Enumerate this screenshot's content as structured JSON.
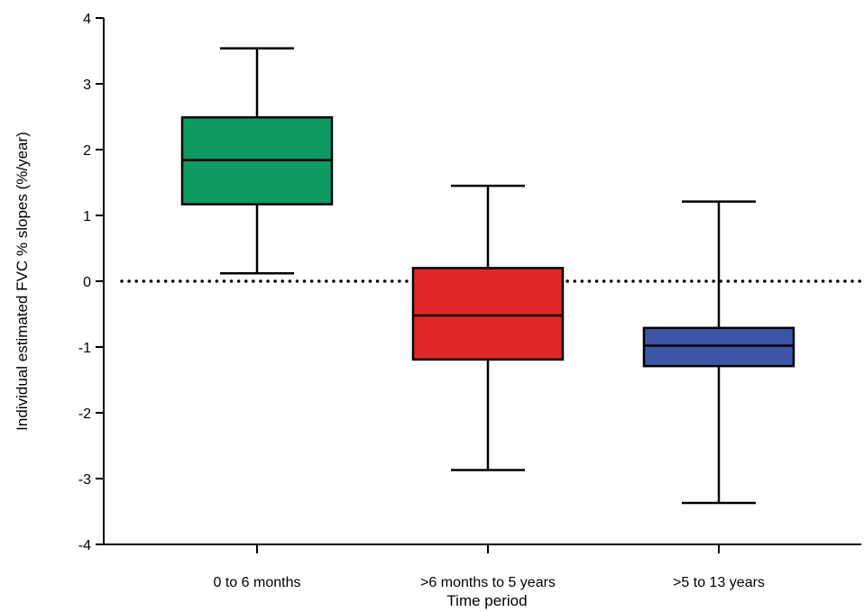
{
  "chart_data": {
    "type": "box",
    "title": "",
    "xlabel": "Time period",
    "ylabel": "Individual estimated FVC % slopes (%/year)",
    "ylim": [
      -4,
      4
    ],
    "yticks": [
      "4",
      "3",
      "2",
      "1",
      "0",
      "-1",
      "-2",
      "-3",
      "-4"
    ],
    "reference_line": {
      "y": 0,
      "style": "dotted"
    },
    "grid": false,
    "categories": [
      "0 to 6 months",
      ">6 months to 5 years",
      ">5 to 13 years"
    ],
    "boxes": [
      {
        "category": "0 to 6 months",
        "min": 0.12,
        "q1": 1.17,
        "median": 1.84,
        "q3": 2.49,
        "max": 3.54,
        "color": "#0f9a63"
      },
      {
        "category": ">6 months to 5 years",
        "min": -2.87,
        "q1": -1.19,
        "median": -0.52,
        "q3": 0.2,
        "max": 1.45,
        "color": "#e0282b"
      },
      {
        "category": ">5 to 13 years",
        "min": -3.37,
        "q1": -1.29,
        "median": -0.98,
        "q3": -0.71,
        "max": 1.21,
        "color": "#3c55a5"
      }
    ]
  }
}
